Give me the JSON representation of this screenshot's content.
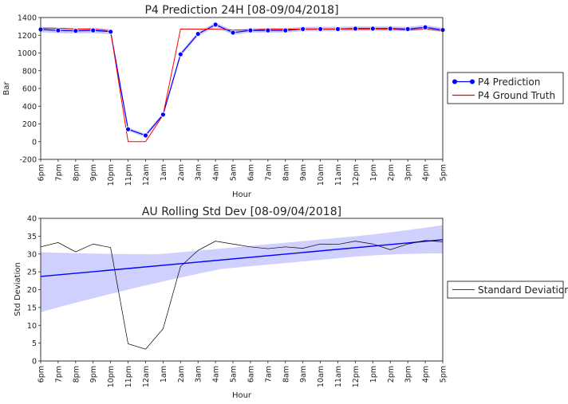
{
  "chart_data": [
    {
      "type": "line",
      "title": "P4 Prediction 24H [08-09/04/2018]",
      "xlabel": "Hour",
      "ylabel": "Bar",
      "ylim": [
        -200,
        1400
      ],
      "yticks": [
        -200,
        0,
        200,
        400,
        600,
        800,
        1000,
        1200,
        1400
      ],
      "categories": [
        "6pm",
        "7pm",
        "8pm",
        "9pm",
        "10pm",
        "11pm",
        "12am",
        "1am",
        "2am",
        "3am",
        "4am",
        "5am",
        "6am",
        "7am",
        "8am",
        "9am",
        "10am",
        "11am",
        "12pm",
        "1pm",
        "2pm",
        "3pm",
        "4pm",
        "5pm"
      ],
      "grid": false,
      "legend_position": "outside right",
      "series": [
        {
          "name": "P4 Prediction",
          "color": "#0000ff",
          "marker": "circle",
          "values": [
            1265,
            1255,
            1250,
            1255,
            1240,
            140,
            70,
            305,
            985,
            1215,
            1320,
            1230,
            1255,
            1255,
            1255,
            1270,
            1270,
            1270,
            1275,
            1275,
            1275,
            1270,
            1290,
            1260
          ],
          "band_lower": [
            1235,
            1225,
            1220,
            1225,
            1210,
            120,
            50,
            285,
            960,
            1190,
            1295,
            1205,
            1230,
            1230,
            1230,
            1245,
            1245,
            1245,
            1250,
            1250,
            1250,
            1245,
            1265,
            1235
          ],
          "band_upper": [
            1295,
            1285,
            1280,
            1285,
            1270,
            160,
            90,
            325,
            1010,
            1240,
            1345,
            1255,
            1280,
            1280,
            1280,
            1295,
            1295,
            1295,
            1300,
            1300,
            1300,
            1295,
            1315,
            1285
          ]
        },
        {
          "name": "P4 Ground Truth",
          "color": "#ff0000",
          "marker": "none",
          "values": [
            1280,
            1280,
            1270,
            1270,
            1250,
            0,
            0,
            300,
            1270,
            1270,
            1270,
            1260,
            1260,
            1270,
            1270,
            1270,
            1270,
            1270,
            1270,
            1270,
            1270,
            1260,
            1270,
            1250
          ]
        }
      ]
    },
    {
      "type": "line",
      "title": "AU Rolling Std Dev [08-09/04/2018]",
      "xlabel": "Hour",
      "ylabel": "Std Deviation",
      "ylim": [
        0,
        40
      ],
      "yticks": [
        0,
        5,
        10,
        15,
        20,
        25,
        30,
        35,
        40
      ],
      "categories": [
        "6pm",
        "7pm",
        "8pm",
        "9pm",
        "10pm",
        "11pm",
        "12am",
        "1am",
        "2am",
        "3am",
        "4am",
        "5am",
        "6am",
        "7am",
        "8am",
        "9am",
        "10am",
        "11am",
        "12pm",
        "1pm",
        "2pm",
        "3pm",
        "4pm",
        "5pm"
      ],
      "grid": false,
      "legend_position": "outside right",
      "series": [
        {
          "name": "Standard Deviation",
          "color": "#000000",
          "values": [
            32,
            33.2,
            30.6,
            32.8,
            31.8,
            4.8,
            3.3,
            9,
            26.5,
            31,
            33.6,
            32.8,
            32,
            31.5,
            32,
            31.6,
            32.8,
            32.7,
            33.6,
            32.8,
            31.2,
            32.8,
            33.8,
            33.4
          ]
        }
      ],
      "regression": {
        "color": "#0000ff",
        "start": 23.7,
        "end": 34,
        "ci_lower_start": 13.7,
        "ci_lower_end": 31.5,
        "ci_upper_start": 30.5,
        "ci_upper_end": 37.2
      }
    }
  ]
}
